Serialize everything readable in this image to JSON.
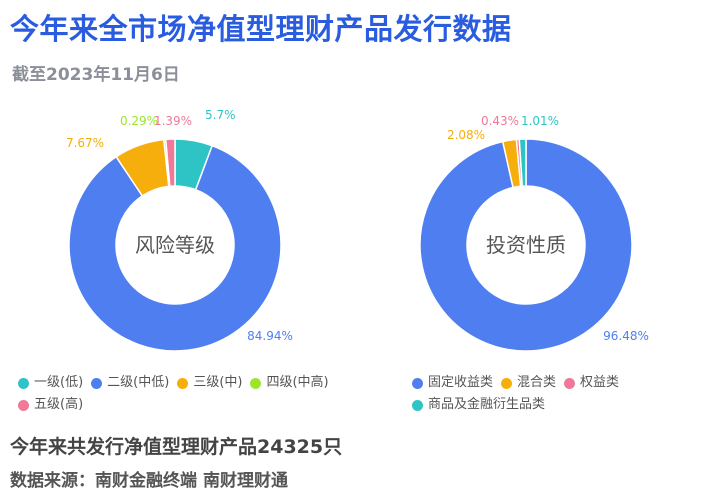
{
  "title": "今年来全市场净值型理财产品发行数据",
  "subtitle": "截至2023年11月6日",
  "chart_data": [
    {
      "type": "pie",
      "center_label": "风险等级",
      "categories": [
        "一级(低)",
        "二级(中低)",
        "三级(中)",
        "四级(中高)",
        "五级(高)"
      ],
      "values": [
        5.7,
        84.94,
        7.67,
        0.29,
        1.39
      ],
      "value_labels": [
        "5.7%",
        "84.94%",
        "7.67%",
        "0.29%",
        "1.39%"
      ],
      "colors": [
        "#2ec4c6",
        "#4e7ef0",
        "#f5ae0b",
        "#9be52b",
        "#f0799a"
      ],
      "legend_position": "bottom"
    },
    {
      "type": "pie",
      "center_label": "投资性质",
      "categories": [
        "固定收益类",
        "混合类",
        "权益类",
        "商品及金融衍生品类"
      ],
      "values": [
        96.48,
        2.08,
        0.43,
        1.01
      ],
      "value_labels": [
        "96.48%",
        "2.08%",
        "0.43%",
        "1.01%"
      ],
      "colors": [
        "#4e7ef0",
        "#f5ae0b",
        "#f0799a",
        "#2ec4c6"
      ],
      "legend_position": "bottom"
    }
  ],
  "footer": {
    "summary": "今年来共发行净值型理财产品24325只",
    "source_label": "数据来源：",
    "source_1": "南财金融终端",
    "source_2": "南财理财通"
  }
}
